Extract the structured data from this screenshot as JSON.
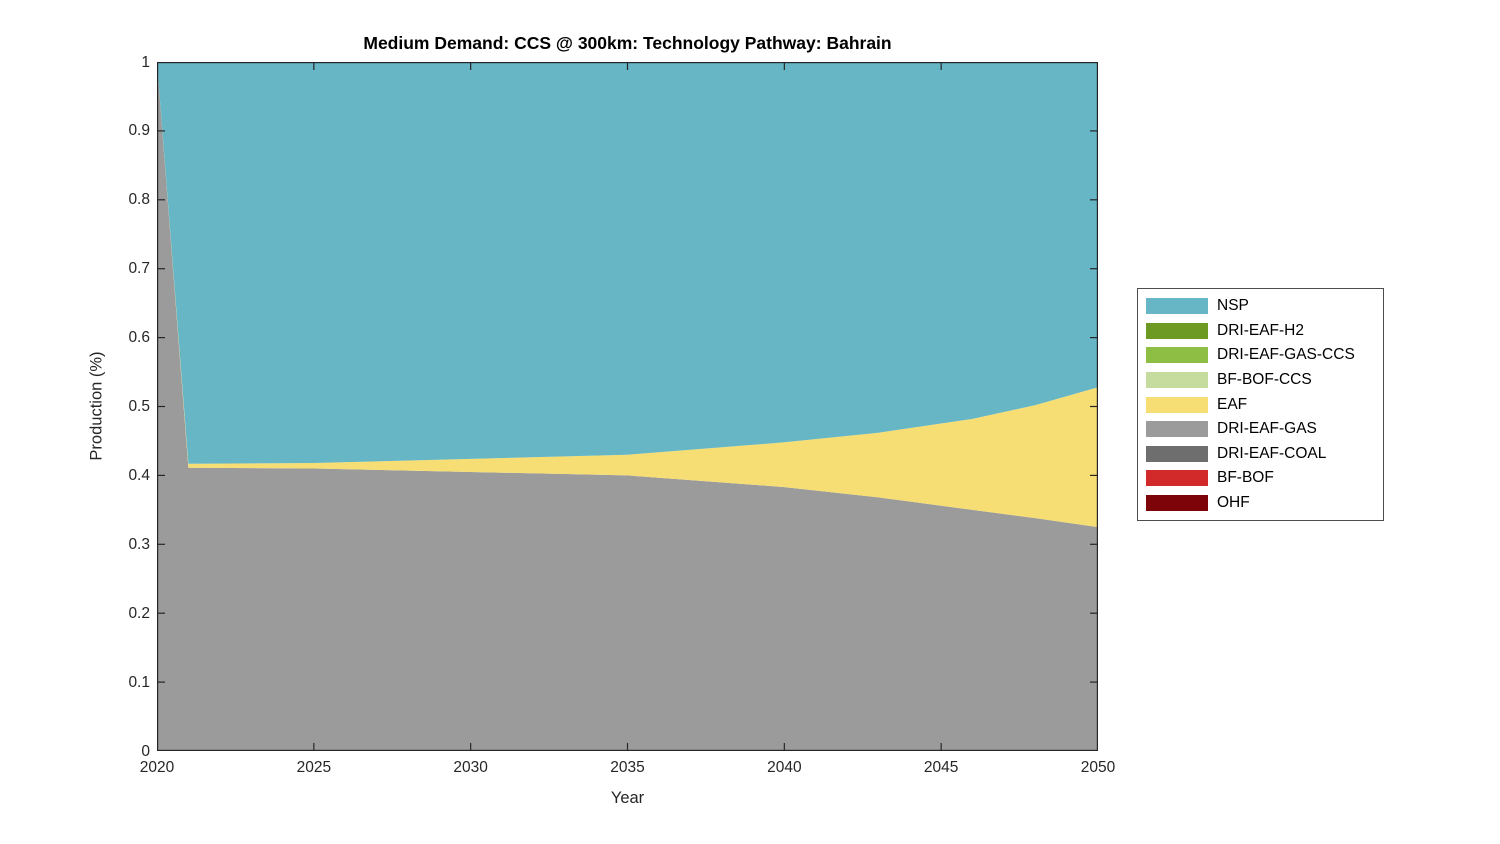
{
  "chart_data": {
    "type": "area",
    "stacked": true,
    "title": "Medium Demand: CCS @ 300km: Technology Pathway: Bahrain",
    "xlabel": "Year",
    "ylabel": "Production (%)",
    "xlim": [
      2020,
      2050
    ],
    "ylim": [
      0,
      1
    ],
    "xtick_labels": [
      "2020",
      "2025",
      "2030",
      "2035",
      "2040",
      "2045",
      "2050"
    ],
    "ytick_labels": [
      "0",
      "0.1",
      "0.2",
      "0.3",
      "0.4",
      "0.5",
      "0.6",
      "0.7",
      "0.8",
      "0.9",
      "1"
    ],
    "grid": false,
    "axis_color": "#262626",
    "x": [
      2020,
      2021,
      2025,
      2030,
      2035,
      2040,
      2043,
      2046,
      2048,
      2050
    ],
    "stack_order": "bottom-to-top",
    "series": [
      {
        "name": "OHF",
        "color": "#7D050A",
        "values": [
          0,
          0,
          0,
          0,
          0,
          0,
          0,
          0,
          0,
          0
        ]
      },
      {
        "name": "BF-BOF",
        "color": "#D2292B",
        "values": [
          0,
          0,
          0,
          0,
          0,
          0,
          0,
          0,
          0,
          0
        ]
      },
      {
        "name": "DRI-EAF-COAL",
        "color": "#6E6E6E",
        "values": [
          0,
          0,
          0,
          0,
          0,
          0,
          0,
          0,
          0,
          0
        ]
      },
      {
        "name": "DRI-EAF-GAS",
        "color": "#9B9B9B",
        "values": [
          1.0,
          0.411,
          0.41,
          0.405,
          0.4,
          0.383,
          0.368,
          0.35,
          0.338,
          0.325
        ]
      },
      {
        "name": "EAF",
        "color": "#F6DE74",
        "values": [
          0,
          0.006,
          0.008,
          0.019,
          0.03,
          0.065,
          0.094,
          0.132,
          0.164,
          0.203
        ]
      },
      {
        "name": "BF-BOF-CCS",
        "color": "#C6DC9E",
        "values": [
          0,
          0,
          0,
          0,
          0,
          0,
          0,
          0,
          0,
          0
        ]
      },
      {
        "name": "DRI-EAF-GAS-CCS",
        "color": "#8FBE44",
        "values": [
          0,
          0,
          0,
          0,
          0,
          0,
          0,
          0,
          0,
          0
        ]
      },
      {
        "name": "DRI-EAF-H2",
        "color": "#6D9A22",
        "values": [
          0,
          0,
          0,
          0,
          0,
          0,
          0,
          0,
          0,
          0
        ]
      },
      {
        "name": "NSP",
        "color": "#66B6C5",
        "values": [
          0,
          0.583,
          0.582,
          0.576,
          0.57,
          0.552,
          0.538,
          0.518,
          0.498,
          0.472
        ]
      }
    ],
    "legend": {
      "position": "right-outside",
      "entries": [
        {
          "label": "NSP",
          "color": "#66B6C5"
        },
        {
          "label": "DRI-EAF-H2",
          "color": "#6D9A22"
        },
        {
          "label": "DRI-EAF-GAS-CCS",
          "color": "#8FBE44"
        },
        {
          "label": "BF-BOF-CCS",
          "color": "#C6DC9E"
        },
        {
          "label": "EAF",
          "color": "#F6DE74"
        },
        {
          "label": "DRI-EAF-GAS",
          "color": "#9B9B9B"
        },
        {
          "label": "DRI-EAF-COAL",
          "color": "#6E6E6E"
        },
        {
          "label": "BF-BOF",
          "color": "#D2292B"
        },
        {
          "label": "OHF",
          "color": "#7D050A"
        }
      ]
    }
  }
}
